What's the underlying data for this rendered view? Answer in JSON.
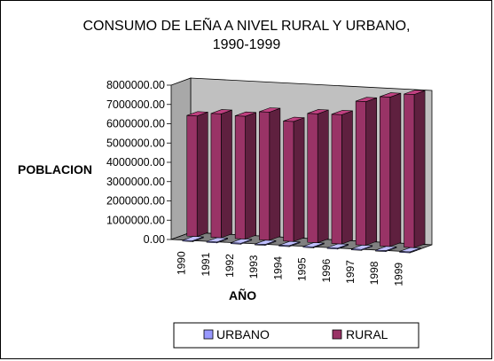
{
  "chart_data": {
    "type": "bar",
    "title": [
      "CONSUMO DE LEÑA A NIVEL RURAL Y URBANO,",
      "1990-1999"
    ],
    "xlabel": "AÑO",
    "ylabel": "POBLACION",
    "categories": [
      "1990",
      "1991",
      "1992",
      "1993",
      "1994",
      "1995",
      "1996",
      "1997",
      "1998",
      "1999"
    ],
    "ylim": [
      0,
      8000000
    ],
    "yticks": [
      "0.00",
      "1000000.00",
      "2000000.00",
      "3000000.00",
      "4000000.00",
      "5000000.00",
      "6000000.00",
      "7000000.00",
      "8000000.00"
    ],
    "series": [
      {
        "name": "URBANO",
        "color": "#9999ff",
        "values": [
          0,
          0,
          0,
          0,
          0,
          0,
          0,
          0,
          0,
          0
        ]
      },
      {
        "name": "RURAL",
        "color": "#993366",
        "values": [
          6250000,
          6420000,
          6360000,
          6640000,
          6220000,
          6680000,
          6700000,
          7440000,
          7740000,
          7940000
        ]
      }
    ],
    "legend_position": "bottom",
    "grid": false,
    "style": "3d-column"
  }
}
